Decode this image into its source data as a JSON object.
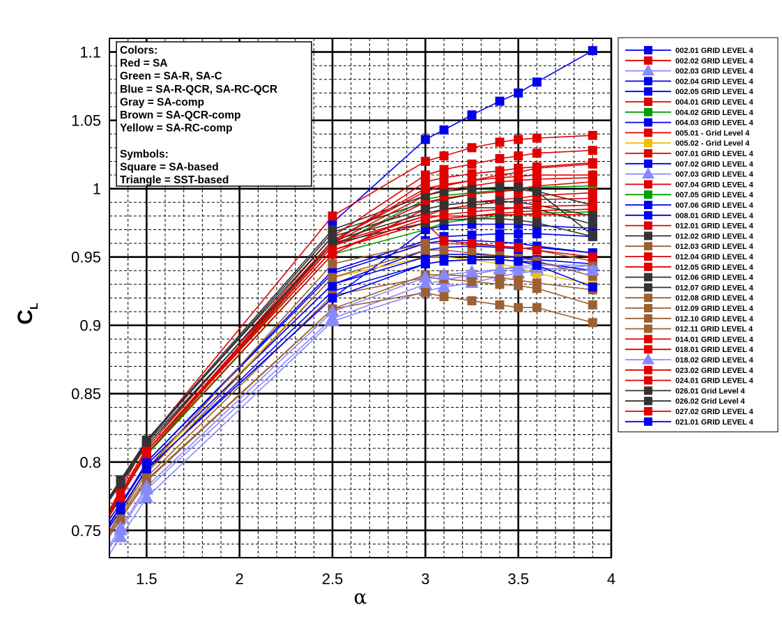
{
  "chart_data": {
    "type": "line",
    "xlabel": "α",
    "ylabel": "C",
    "ylabel_subscript": "L",
    "xlim": [
      1.3,
      4.0
    ],
    "ylim": [
      0.73,
      1.11
    ],
    "x_ticks": [
      "1.5",
      "2",
      "2.5",
      "3",
      "3.5",
      "4"
    ],
    "y_ticks": [
      "0.75",
      "0.8",
      "0.85",
      "0.9",
      "0.95",
      "1",
      "1.05",
      "1.1"
    ],
    "grid": true,
    "legend_position": "right",
    "x": [
      1.36,
      1.5,
      2.5,
      3.0,
      3.1,
      3.25,
      3.4,
      3.5,
      3.6,
      3.9
    ],
    "info_box": {
      "lines": [
        "Colors:",
        "Red = SA",
        "Green = SA-R, SA-C",
        "Blue = SA-R-QCR, SA-RC-QCR",
        "Gray = SA-comp",
        "Brown = SA-QCR-comp",
        "Yellow = SA-RC-comp",
        "",
        "Symbols:",
        "Square = SA-based",
        "Triangle = SST-based"
      ]
    },
    "colors": {
      "red": "#e00000",
      "blue": "#0000ee",
      "lightblue": "#8888ff",
      "green": "#00a000",
      "yellow": "#f0c000",
      "gray": "#333333",
      "brown": "#9c6032"
    },
    "series": [
      {
        "name": "002.01 GRID LEVEL 4",
        "color": "blue",
        "marker": "square",
        "values": [
          null,
          null,
          0.975,
          1.036,
          1.043,
          1.054,
          1.064,
          1.07,
          1.078,
          1.101
        ]
      },
      {
        "name": "002.02 GRID LEVEL 4",
        "color": "red",
        "marker": "square",
        "values": [
          0.78,
          0.815,
          0.98,
          1.02,
          1.024,
          1.03,
          1.034,
          1.036,
          1.037,
          1.039
        ]
      },
      {
        "name": "002.03 GRID LEVEL 4",
        "color": "lightblue",
        "marker": "triangle",
        "values": [
          0.745,
          0.774,
          0.903,
          0.925,
          0.928,
          0.931,
          0.936,
          0.938,
          0.94,
          0.944
        ]
      },
      {
        "name": "002.04 GRID LEVEL 4",
        "color": "blue",
        "marker": "square",
        "values": [
          0.77,
          0.798,
          0.93,
          0.955,
          0.957,
          0.958,
          0.957,
          0.956,
          0.957,
          0.953
        ]
      },
      {
        "name": "002.05 GRID LEVEL 4",
        "color": "blue",
        "marker": "square",
        "values": [
          0.765,
          0.794,
          0.925,
          0.945,
          0.947,
          0.948,
          0.948,
          0.947,
          0.946,
          0.94
        ]
      },
      {
        "name": "004.01 GRID LEVEL 4",
        "color": "red",
        "marker": "square",
        "values": [
          0.775,
          0.808,
          0.96,
          0.98,
          0.985,
          0.988,
          0.99,
          0.991,
          0.992,
          0.993
        ]
      },
      {
        "name": "004.02 GRID LEVEL 4",
        "color": "green",
        "marker": "square",
        "values": [
          0.775,
          0.805,
          0.952,
          0.97,
          0.975,
          0.978,
          0.98,
          0.981,
          0.982,
          0.983
        ]
      },
      {
        "name": "004.03 GRID LEVEL 4",
        "color": "blue",
        "marker": "square",
        "values": [
          0.768,
          0.8,
          0.94,
          0.962,
          0.965,
          0.966,
          0.967,
          0.967,
          0.967,
          0.965
        ]
      },
      {
        "name": "005.01 - Grid Level 4",
        "color": "red",
        "marker": "square",
        "values": [
          0.776,
          0.808,
          0.955,
          0.975,
          0.978,
          0.98,
          0.982,
          0.983,
          0.984,
          0.985
        ]
      },
      {
        "name": "005.02 - Grid Level 4",
        "color": "yellow",
        "marker": "square",
        "values": [
          0.765,
          0.795,
          0.935,
          0.95,
          0.95,
          0.948,
          0.945,
          0.942,
          0.938,
          0.93
        ]
      },
      {
        "name": "007.01 GRID LEVEL 4",
        "color": "red",
        "marker": "square",
        "values": [
          0.778,
          0.81,
          0.965,
          1.01,
          1.014,
          1.018,
          1.022,
          1.024,
          1.026,
          1.028
        ]
      },
      {
        "name": "007.02 GRID LEVEL 4",
        "color": "blue",
        "marker": "square",
        "values": [
          0.768,
          0.798,
          0.93,
          0.95,
          0.952,
          0.952,
          0.951,
          0.95,
          0.948,
          0.945
        ]
      },
      {
        "name": "007.03 GRID LEVEL 4",
        "color": "lightblue",
        "marker": "triangle",
        "values": [
          0.75,
          0.78,
          0.905,
          0.93,
          0.933,
          0.937,
          0.941,
          0.943,
          0.944,
          0.944
        ]
      },
      {
        "name": "007.04 GRID LEVEL 4",
        "color": "red",
        "marker": "square",
        "values": [
          0.776,
          0.808,
          0.962,
          0.998,
          1.002,
          1.006,
          1.01,
          1.012,
          1.015,
          1.018
        ]
      },
      {
        "name": "007.05 GRID LEVEL 4",
        "color": "green",
        "marker": "square",
        "values": [
          0.776,
          0.806,
          0.958,
          0.992,
          0.995,
          0.997,
          0.999,
          1.0,
          1.001,
          1.002
        ]
      },
      {
        "name": "007.06 GRID LEVEL 4",
        "color": "blue",
        "marker": "square",
        "values": [
          0.768,
          0.8,
          0.938,
          0.96,
          0.962,
          0.962,
          0.961,
          0.96,
          0.958,
          0.953
        ]
      },
      {
        "name": "008.01 GRID LEVEL 4",
        "color": "blue",
        "marker": "square",
        "values": [
          0.765,
          0.795,
          0.92,
          0.97,
          0.973,
          0.974,
          0.974,
          0.974,
          0.973,
          0.971
        ]
      },
      {
        "name": "012.01 GRID LEVEL 4",
        "color": "red",
        "marker": "square",
        "values": [
          0.776,
          0.808,
          0.96,
          0.995,
          0.999,
          1.002,
          1.005,
          1.006,
          1.007,
          1.008
        ]
      },
      {
        "name": "012.02 GRID LEVEL 4",
        "color": "gray",
        "marker": "square",
        "values": [
          0.786,
          0.815,
          0.968,
          0.99,
          0.992,
          0.996,
          0.998,
          0.999,
          0.998,
          0.966
        ]
      },
      {
        "name": "012.03 GRID LEVEL 4",
        "color": "brown",
        "marker": "square",
        "values": [
          0.758,
          0.787,
          0.912,
          0.937,
          0.937,
          0.936,
          0.935,
          0.933,
          0.931,
          0.926
        ]
      },
      {
        "name": "012.04 GRID LEVEL 4",
        "color": "red",
        "marker": "square",
        "values": [
          0.776,
          0.808,
          0.958,
          0.99,
          0.993,
          0.996,
          0.998,
          1.0,
          1.002,
          1.005
        ]
      },
      {
        "name": "012.05 GRID LEVEL 4",
        "color": "red",
        "marker": "square",
        "values": [
          0.774,
          0.806,
          0.952,
          0.985,
          0.988,
          0.99,
          0.992,
          0.993,
          0.995,
          0.997
        ]
      },
      {
        "name": "012.06 GRID LEVEL 4",
        "color": "gray",
        "marker": "square",
        "values": [
          0.784,
          0.812,
          0.962,
          0.982,
          0.985,
          0.986,
          0.986,
          0.986,
          0.985,
          0.974
        ]
      },
      {
        "name": "012.07 GRID LEVEL 4",
        "color": "gray",
        "marker": "square",
        "values": [
          0.786,
          0.816,
          0.97,
          0.995,
          0.998,
          1.0,
          1.001,
          1.001,
          0.998,
          0.988
        ]
      },
      {
        "name": "012.08 GRID LEVEL 4",
        "color": "brown",
        "marker": "square",
        "values": [
          0.758,
          0.786,
          0.912,
          0.924,
          0.921,
          0.918,
          0.915,
          0.913,
          0.913,
          0.902
        ]
      },
      {
        "name": "012.09 GRID LEVEL 4",
        "color": "brown",
        "marker": "square",
        "values": [
          0.76,
          0.789,
          0.922,
          0.935,
          0.934,
          0.932,
          0.93,
          0.929,
          0.927,
          0.915
        ]
      },
      {
        "name": "012.10 GRID LEVEL 4",
        "color": "brown",
        "marker": "square",
        "values": [
          0.762,
          0.792,
          0.935,
          0.955,
          0.955,
          0.953,
          0.951,
          0.949,
          0.947,
          0.936
        ]
      },
      {
        "name": "012.11 GRID LEVEL 4",
        "color": "brown",
        "marker": "square",
        "values": [
          0.763,
          0.795,
          0.945,
          0.96,
          0.96,
          0.959,
          0.958,
          0.957,
          0.955,
          0.947
        ]
      },
      {
        "name": "014.01 GRID LEVEL 4",
        "color": "red",
        "marker": "square",
        "values": [
          0.776,
          0.808,
          0.958,
          0.98,
          0.98,
          0.98,
          0.981,
          0.981,
          0.981,
          0.981
        ]
      },
      {
        "name": "018.01 GRID LEVEL 4",
        "color": "red",
        "marker": "square",
        "values": [
          0.776,
          0.808,
          0.962,
          1.0,
          1.003,
          1.006,
          1.008,
          1.009,
          1.01,
          1.01
        ]
      },
      {
        "name": "018.02 GRID LEVEL 4",
        "color": "lightblue",
        "marker": "triangle",
        "values": [
          0.752,
          0.782,
          0.91,
          0.935,
          0.937,
          0.939,
          0.941,
          0.942,
          0.942,
          0.94
        ]
      },
      {
        "name": "023.02 GRID LEVEL 4",
        "color": "red",
        "marker": "square",
        "values": [
          0.776,
          0.808,
          0.955,
          0.975,
          0.962,
          0.96,
          0.958,
          0.957,
          0.955,
          0.95
        ]
      },
      {
        "name": "024.01 GRID LEVEL 4",
        "color": "red",
        "marker": "square",
        "values": [
          0.776,
          0.808,
          0.96,
          1.005,
          1.008,
          1.011,
          1.013,
          1.015,
          1.016,
          1.019
        ]
      },
      {
        "name": "026.01 Grid Level 4",
        "color": "gray",
        "marker": "square",
        "values": [
          0.787,
          0.816,
          0.965,
          0.985,
          0.988,
          0.99,
          0.991,
          0.99,
          0.988,
          0.98
        ]
      },
      {
        "name": "026.02 Grid Level 4",
        "color": "gray",
        "marker": "square",
        "values": [
          0.785,
          0.814,
          0.96,
          0.975,
          0.977,
          0.978,
          0.978,
          0.977,
          0.975,
          0.965
        ]
      },
      {
        "name": "027.02 GRID LEVEL 4",
        "color": "red",
        "marker": "square",
        "values": [
          0.776,
          0.808,
          0.955,
          0.978,
          0.981,
          0.983,
          0.985,
          0.986,
          0.987,
          0.988
        ]
      },
      {
        "name": "021.01 GRID LEVEL 4",
        "color": "blue",
        "marker": "square",
        "values": [
          0.765,
          0.795,
          0.92,
          0.945,
          0.947,
          0.948,
          0.948,
          0.947,
          0.944,
          0.928
        ]
      }
    ]
  }
}
